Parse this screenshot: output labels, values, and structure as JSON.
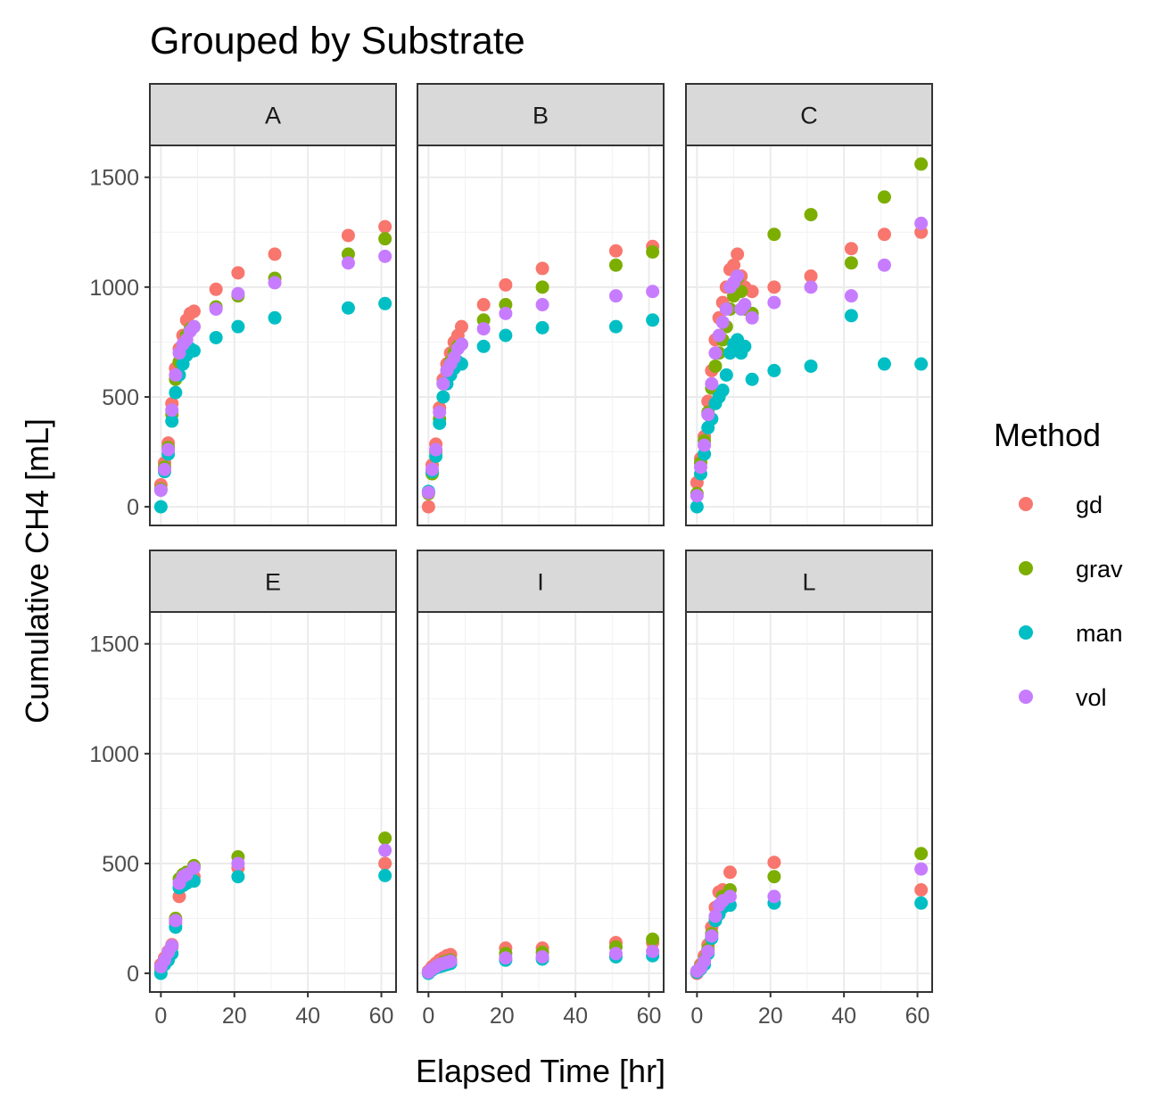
{
  "chart_data": {
    "type": "scatter",
    "title": "Grouped by Substrate",
    "xlabel": "Elapsed Time [hr]",
    "ylabel": "Cumulative CH4 [mL]",
    "xlim": [
      -3,
      64
    ],
    "ylim": [
      -85,
      1645
    ],
    "x_ticks": [
      0,
      20,
      40,
      60
    ],
    "y_ticks": [
      0,
      500,
      1000,
      1500
    ],
    "x_tick_labels": [
      "0",
      "20",
      "40",
      "60"
    ],
    "y_tick_labels": [
      "0",
      "500",
      "1000",
      "1500"
    ],
    "grid": true,
    "legend": {
      "title": "Method",
      "position": "right",
      "entries": [
        {
          "name": "gd",
          "color": "#F8766D"
        },
        {
          "name": "grav",
          "color": "#7CAE00"
        },
        {
          "name": "man",
          "color": "#00BFC4"
        },
        {
          "name": "vol",
          "color": "#C77CFF"
        }
      ]
    },
    "facets": [
      {
        "label": "A",
        "series": [
          {
            "name": "gd",
            "x": [
              0,
              1,
              2,
              3,
              4,
              5,
              6,
              7,
              8,
              9,
              15,
              21,
              31,
              51,
              61
            ],
            "y": [
              100,
              200,
              290,
              470,
              630,
              720,
              780,
              850,
              880,
              890,
              990,
              1065,
              1150,
              1235,
              1275
            ]
          },
          {
            "name": "grav",
            "x": [
              0,
              1,
              2,
              3,
              4,
              5,
              6,
              7,
              8,
              9,
              15,
              21,
              31,
              51,
              61
            ],
            "y": [
              80,
              180,
              270,
              420,
              580,
              660,
              730,
              780,
              810,
              820,
              910,
              960,
              1040,
              1150,
              1220
            ]
          },
          {
            "name": "man",
            "x": [
              0,
              1,
              2,
              3,
              4,
              5,
              6,
              7,
              8,
              9,
              15,
              21,
              31,
              51,
              61
            ],
            "y": [
              0,
              160,
              240,
              390,
              520,
              600,
              650,
              690,
              720,
              710,
              770,
              820,
              860,
              905,
              925
            ]
          },
          {
            "name": "vol",
            "x": [
              0,
              1,
              2,
              3,
              4,
              5,
              6,
              7,
              8,
              9,
              15,
              21,
              31,
              51,
              61
            ],
            "y": [
              75,
              170,
              260,
              440,
              600,
              700,
              740,
              760,
              800,
              820,
              900,
              970,
              1020,
              1110,
              1140
            ]
          }
        ]
      },
      {
        "label": "B",
        "series": [
          {
            "name": "gd",
            "x": [
              0,
              1,
              2,
              3,
              4,
              5,
              6,
              7,
              8,
              9,
              15,
              21,
              31,
              51,
              61
            ],
            "y": [
              0,
              190,
              285,
              450,
              580,
              650,
              700,
              750,
              780,
              820,
              920,
              1010,
              1085,
              1165,
              1185
            ]
          },
          {
            "name": "grav",
            "x": [
              0,
              1,
              2,
              3,
              4,
              5,
              6,
              7,
              8,
              9,
              15,
              21,
              31,
              51,
              61
            ],
            "y": [
              60,
              150,
              250,
              400,
              560,
              620,
              660,
              700,
              730,
              740,
              850,
              920,
              1000,
              1100,
              1160
            ]
          },
          {
            "name": "man",
            "x": [
              0,
              1,
              2,
              3,
              4,
              5,
              6,
              7,
              8,
              9,
              15,
              21,
              31,
              51,
              61
            ],
            "y": [
              70,
              160,
              230,
              380,
              500,
              560,
              600,
              630,
              660,
              650,
              730,
              780,
              815,
              820,
              850
            ]
          },
          {
            "name": "vol",
            "x": [
              0,
              1,
              2,
              3,
              4,
              5,
              6,
              7,
              8,
              9,
              15,
              21,
              31,
              51,
              61
            ],
            "y": [
              65,
              170,
              260,
              430,
              560,
              620,
              650,
              680,
              720,
              740,
              810,
              880,
              920,
              960,
              980
            ]
          }
        ]
      },
      {
        "label": "C",
        "series": [
          {
            "name": "gd",
            "x": [
              0,
              1,
              2,
              3,
              4,
              5,
              6,
              7,
              8,
              9,
              10,
              11,
              12,
              13,
              15,
              21,
              31,
              42,
              51,
              61
            ],
            "y": [
              110,
              220,
              320,
              480,
              620,
              760,
              860,
              930,
              1000,
              1080,
              1100,
              1150,
              1050,
              1000,
              980,
              1000,
              1050,
              1175,
              1240,
              1250
            ]
          },
          {
            "name": "grav",
            "x": [
              0,
              1,
              2,
              3,
              4,
              5,
              6,
              7,
              8,
              9,
              10,
              11,
              12,
              13,
              15,
              21,
              31,
              42,
              51,
              61
            ],
            "y": [
              60,
              200,
              300,
              430,
              540,
              640,
              700,
              760,
              820,
              900,
              960,
              1040,
              980,
              900,
              880,
              1240,
              1330,
              1110,
              1410,
              1560
            ]
          },
          {
            "name": "man",
            "x": [
              0,
              1,
              2,
              3,
              4,
              5,
              6,
              7,
              8,
              9,
              10,
              11,
              12,
              13,
              15,
              21,
              31,
              42,
              51,
              61
            ],
            "y": [
              0,
              150,
              240,
              360,
              400,
              470,
              500,
              530,
              600,
              700,
              740,
              760,
              700,
              730,
              580,
              620,
              640,
              870,
              650,
              650
            ]
          },
          {
            "name": "vol",
            "x": [
              0,
              1,
              2,
              3,
              4,
              5,
              6,
              7,
              8,
              9,
              10,
              11,
              12,
              13,
              15,
              21,
              31,
              42,
              51,
              61
            ],
            "y": [
              50,
              180,
              280,
              420,
              560,
              700,
              780,
              840,
              900,
              1000,
              1020,
              1050,
              900,
              920,
              860,
              930,
              1000,
              960,
              1100,
              1290
            ]
          }
        ]
      },
      {
        "label": "E",
        "series": [
          {
            "name": "gd",
            "x": [
              0,
              1,
              2,
              3,
              4,
              5,
              6,
              7,
              9,
              21,
              61
            ],
            "y": [
              40,
              70,
              100,
              130,
              230,
              350,
              400,
              420,
              440,
              480,
              500
            ]
          },
          {
            "name": "grav",
            "x": [
              0,
              1,
              2,
              3,
              4,
              5,
              6,
              7,
              9,
              21,
              61
            ],
            "y": [
              20,
              60,
              90,
              120,
              250,
              430,
              450,
              460,
              490,
              530,
              615
            ]
          },
          {
            "name": "man",
            "x": [
              0,
              1,
              2,
              3,
              4,
              5,
              6,
              7,
              9,
              21,
              61
            ],
            "y": [
              0,
              40,
              60,
              90,
              210,
              390,
              400,
              410,
              420,
              440,
              445
            ]
          },
          {
            "name": "vol",
            "x": [
              0,
              1,
              2,
              3,
              4,
              5,
              6,
              7,
              9,
              21,
              61
            ],
            "y": [
              30,
              60,
              95,
              125,
              240,
              410,
              440,
              450,
              480,
              500,
              560
            ]
          }
        ]
      },
      {
        "label": "I",
        "series": [
          {
            "name": "gd",
            "x": [
              0,
              1,
              2,
              3,
              4,
              5,
              6,
              21,
              31,
              51,
              61
            ],
            "y": [
              10,
              30,
              45,
              60,
              70,
              80,
              85,
              115,
              115,
              140,
              140
            ]
          },
          {
            "name": "grav",
            "x": [
              0,
              1,
              2,
              3,
              4,
              5,
              6,
              21,
              31,
              51,
              61
            ],
            "y": [
              5,
              20,
              30,
              40,
              50,
              55,
              60,
              90,
              95,
              120,
              155
            ]
          },
          {
            "name": "man",
            "x": [
              0,
              1,
              2,
              3,
              4,
              5,
              6,
              21,
              31,
              51,
              61
            ],
            "y": [
              0,
              15,
              25,
              30,
              35,
              40,
              45,
              60,
              65,
              75,
              80
            ]
          },
          {
            "name": "vol",
            "x": [
              0,
              1,
              2,
              3,
              4,
              5,
              6,
              21,
              31,
              51,
              61
            ],
            "y": [
              5,
              20,
              30,
              40,
              45,
              50,
              55,
              70,
              75,
              90,
              100
            ]
          }
        ]
      },
      {
        "label": "L",
        "series": [
          {
            "name": "gd",
            "x": [
              0,
              1,
              2,
              3,
              4,
              5,
              6,
              7,
              9,
              21,
              61
            ],
            "y": [
              0,
              40,
              80,
              130,
              210,
              300,
              370,
              380,
              460,
              505,
              380
            ]
          },
          {
            "name": "grav",
            "x": [
              0,
              1,
              2,
              3,
              4,
              5,
              6,
              7,
              9,
              21,
              61
            ],
            "y": [
              10,
              30,
              60,
              110,
              180,
              250,
              310,
              350,
              380,
              440,
              545
            ]
          },
          {
            "name": "man",
            "x": [
              0,
              1,
              2,
              3,
              4,
              5,
              6,
              7,
              9,
              21,
              61
            ],
            "y": [
              5,
              20,
              40,
              90,
              160,
              240,
              270,
              300,
              310,
              320,
              320
            ]
          },
          {
            "name": "vol",
            "x": [
              0,
              1,
              2,
              3,
              4,
              5,
              6,
              7,
              9,
              21,
              61
            ],
            "y": [
              10,
              25,
              55,
              100,
              170,
              260,
              310,
              330,
              350,
              350,
              475
            ]
          }
        ]
      }
    ]
  }
}
